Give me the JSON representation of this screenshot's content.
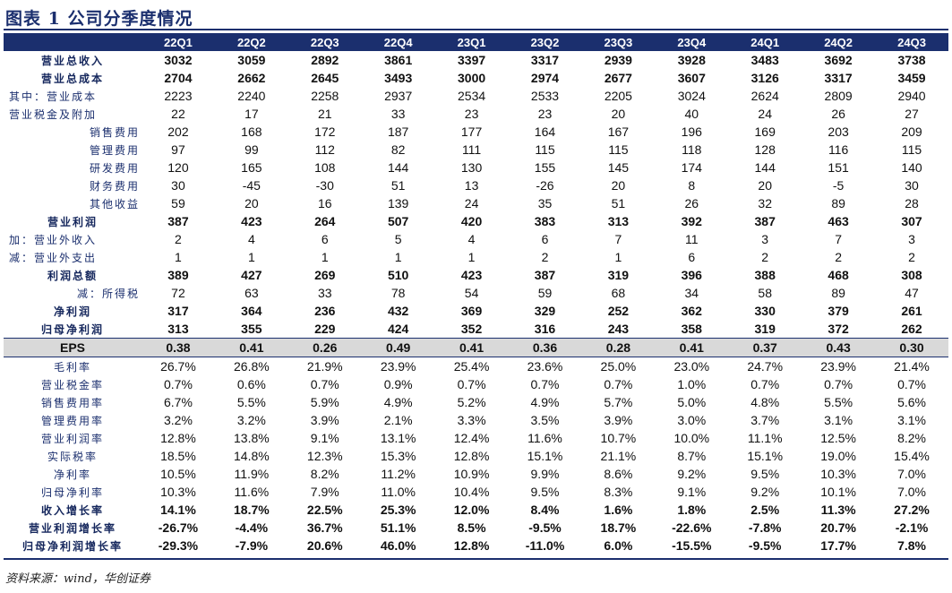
{
  "title": "图表 1   公司分季度情况",
  "columns": [
    "22Q1",
    "22Q2",
    "22Q3",
    "22Q4",
    "23Q1",
    "23Q2",
    "23Q3",
    "23Q4",
    "24Q1",
    "24Q2",
    "24Q3"
  ],
  "rows": [
    {
      "label": "营业总收入",
      "style": "bold",
      "align": "center",
      "values": [
        "3032",
        "3059",
        "2892",
        "3861",
        "3397",
        "3317",
        "2939",
        "3928",
        "3483",
        "3692",
        "3738"
      ]
    },
    {
      "label": "营业总成本",
      "style": "bold",
      "align": "center",
      "values": [
        "2704",
        "2662",
        "2645",
        "3493",
        "3000",
        "2974",
        "2677",
        "3607",
        "3126",
        "3317",
        "3459"
      ]
    },
    {
      "label": "其中：营业成本",
      "style": "normal",
      "align": "indent1",
      "values": [
        "2223",
        "2240",
        "2258",
        "2937",
        "2534",
        "2533",
        "2205",
        "3024",
        "2624",
        "2809",
        "2940"
      ]
    },
    {
      "label": "营业税金及附加",
      "style": "normal",
      "align": "indent1",
      "values": [
        "22",
        "17",
        "21",
        "33",
        "23",
        "23",
        "20",
        "40",
        "24",
        "26",
        "27"
      ]
    },
    {
      "label": "销售费用",
      "style": "normal",
      "align": "right",
      "values": [
        "202",
        "168",
        "172",
        "187",
        "177",
        "164",
        "167",
        "196",
        "169",
        "203",
        "209"
      ]
    },
    {
      "label": "管理费用",
      "style": "normal",
      "align": "right",
      "values": [
        "97",
        "99",
        "112",
        "82",
        "111",
        "115",
        "115",
        "118",
        "128",
        "116",
        "115"
      ]
    },
    {
      "label": "研发费用",
      "style": "normal",
      "align": "right",
      "values": [
        "120",
        "165",
        "108",
        "144",
        "130",
        "155",
        "145",
        "174",
        "144",
        "151",
        "140"
      ]
    },
    {
      "label": "财务费用",
      "style": "normal",
      "align": "right",
      "values": [
        "30",
        "-45",
        "-30",
        "51",
        "13",
        "-26",
        "20",
        "8",
        "20",
        "-5",
        "30"
      ]
    },
    {
      "label": "其他收益",
      "style": "normal",
      "align": "right",
      "values": [
        "59",
        "20",
        "16",
        "139",
        "24",
        "35",
        "51",
        "26",
        "32",
        "89",
        "28"
      ]
    },
    {
      "label": "营业利润",
      "style": "bold",
      "align": "center",
      "values": [
        "387",
        "423",
        "264",
        "507",
        "420",
        "383",
        "313",
        "392",
        "387",
        "463",
        "307"
      ]
    },
    {
      "label": "加：营业外收入",
      "style": "normal",
      "align": "indent1",
      "values": [
        "2",
        "4",
        "6",
        "5",
        "4",
        "6",
        "7",
        "11",
        "3",
        "7",
        "3"
      ]
    },
    {
      "label": "减：营业外支出",
      "style": "normal",
      "align": "indent1",
      "values": [
        "1",
        "1",
        "1",
        "1",
        "1",
        "2",
        "1",
        "6",
        "2",
        "2",
        "2"
      ]
    },
    {
      "label": "利润总额",
      "style": "bold",
      "align": "center",
      "values": [
        "389",
        "427",
        "269",
        "510",
        "423",
        "387",
        "319",
        "396",
        "388",
        "468",
        "308"
      ]
    },
    {
      "label": "减：所得税",
      "style": "normal",
      "align": "right",
      "values": [
        "72",
        "63",
        "33",
        "78",
        "54",
        "59",
        "68",
        "34",
        "58",
        "89",
        "47"
      ]
    },
    {
      "label": "净利润",
      "style": "bold",
      "align": "center",
      "values": [
        "317",
        "364",
        "236",
        "432",
        "369",
        "329",
        "252",
        "362",
        "330",
        "379",
        "261"
      ]
    },
    {
      "label": "归母净利润",
      "style": "bold",
      "align": "center",
      "values": [
        "313",
        "355",
        "229",
        "424",
        "352",
        "316",
        "243",
        "358",
        "319",
        "372",
        "262"
      ]
    },
    {
      "label": "EPS",
      "style": "eps",
      "align": "center",
      "values": [
        "0.38",
        "0.41",
        "0.26",
        "0.49",
        "0.41",
        "0.36",
        "0.28",
        "0.41",
        "0.37",
        "0.43",
        "0.30"
      ]
    },
    {
      "label": "毛利率",
      "style": "normal",
      "align": "center",
      "values": [
        "26.7%",
        "26.8%",
        "21.9%",
        "23.9%",
        "25.4%",
        "23.6%",
        "25.0%",
        "23.0%",
        "24.7%",
        "23.9%",
        "21.4%"
      ]
    },
    {
      "label": "营业税金率",
      "style": "normal",
      "align": "center",
      "values": [
        "0.7%",
        "0.6%",
        "0.7%",
        "0.9%",
        "0.7%",
        "0.7%",
        "0.7%",
        "1.0%",
        "0.7%",
        "0.7%",
        "0.7%"
      ]
    },
    {
      "label": "销售费用率",
      "style": "normal",
      "align": "center",
      "values": [
        "6.7%",
        "5.5%",
        "5.9%",
        "4.9%",
        "5.2%",
        "4.9%",
        "5.7%",
        "5.0%",
        "4.8%",
        "5.5%",
        "5.6%"
      ]
    },
    {
      "label": "管理费用率",
      "style": "normal",
      "align": "center",
      "values": [
        "3.2%",
        "3.2%",
        "3.9%",
        "2.1%",
        "3.3%",
        "3.5%",
        "3.9%",
        "3.0%",
        "3.7%",
        "3.1%",
        "3.1%"
      ]
    },
    {
      "label": "营业利润率",
      "style": "normal",
      "align": "center",
      "values": [
        "12.8%",
        "13.8%",
        "9.1%",
        "13.1%",
        "12.4%",
        "11.6%",
        "10.7%",
        "10.0%",
        "11.1%",
        "12.5%",
        "8.2%"
      ]
    },
    {
      "label": "实际税率",
      "style": "normal",
      "align": "center",
      "values": [
        "18.5%",
        "14.8%",
        "12.3%",
        "15.3%",
        "12.8%",
        "15.1%",
        "21.1%",
        "8.7%",
        "15.1%",
        "19.0%",
        "15.4%"
      ]
    },
    {
      "label": "净利率",
      "style": "normal",
      "align": "center",
      "values": [
        "10.5%",
        "11.9%",
        "8.2%",
        "11.2%",
        "10.9%",
        "9.9%",
        "8.6%",
        "9.2%",
        "9.5%",
        "10.3%",
        "7.0%"
      ]
    },
    {
      "label": "归母净利率",
      "style": "normal",
      "align": "center",
      "values": [
        "10.3%",
        "11.6%",
        "7.9%",
        "11.0%",
        "10.4%",
        "9.5%",
        "8.3%",
        "9.1%",
        "9.2%",
        "10.1%",
        "7.0%"
      ]
    },
    {
      "label": "收入增长率",
      "style": "bold",
      "align": "center",
      "values": [
        "14.1%",
        "18.7%",
        "22.5%",
        "25.3%",
        "12.0%",
        "8.4%",
        "1.6%",
        "1.8%",
        "2.5%",
        "11.3%",
        "27.2%"
      ]
    },
    {
      "label": "营业利润增长率",
      "style": "bold",
      "align": "center",
      "values": [
        "-26.7%",
        "-4.4%",
        "36.7%",
        "51.1%",
        "8.5%",
        "-9.5%",
        "18.7%",
        "-22.6%",
        "-7.8%",
        "20.7%",
        "-2.1%"
      ]
    },
    {
      "label": "归母净利润增长率",
      "style": "bold",
      "align": "center",
      "values": [
        "-29.3%",
        "-7.9%",
        "20.6%",
        "46.0%",
        "12.8%",
        "-11.0%",
        "6.0%",
        "-15.5%",
        "-9.5%",
        "17.7%",
        "7.8%"
      ]
    }
  ],
  "source": "资料来源：wind，华创证券",
  "colors": {
    "header_bg": "#1b2f6e",
    "eps_bg": "#d9d9d9",
    "label_text": "#1b2f6e"
  }
}
